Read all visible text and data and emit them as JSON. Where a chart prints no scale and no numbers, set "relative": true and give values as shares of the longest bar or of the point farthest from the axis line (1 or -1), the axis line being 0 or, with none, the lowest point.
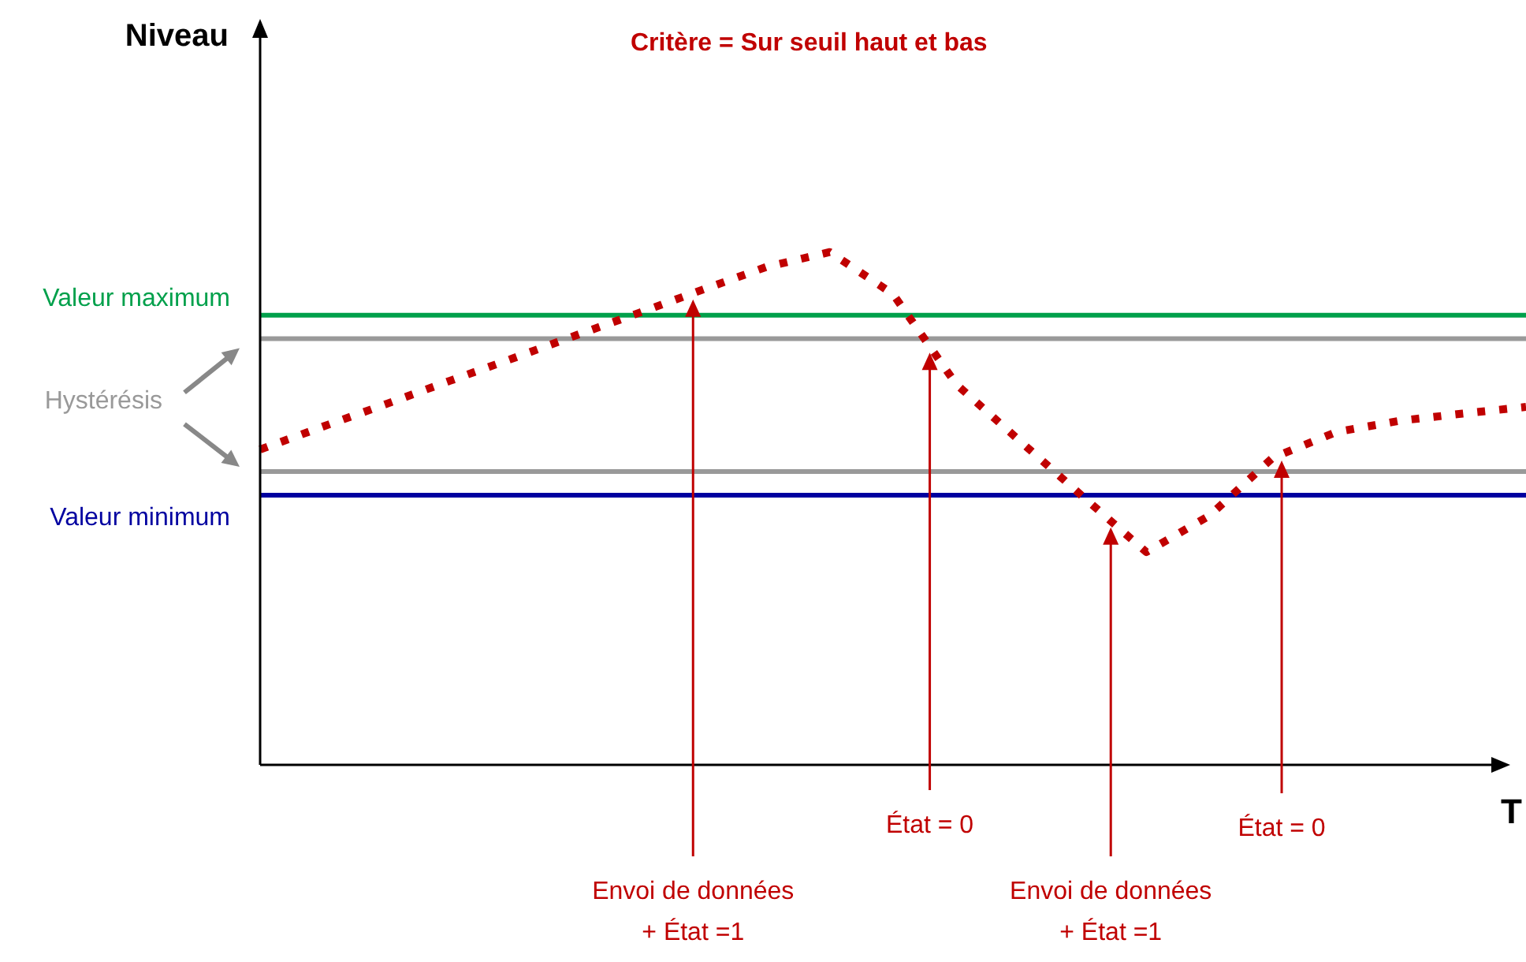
{
  "chart_data": {
    "type": "line",
    "title": "Critère = Sur seuil haut et bas",
    "xlabel": "T",
    "relative": true,
    "marker": "none",
    "line_style": "dotted",
    "legend": false,
    "categories": [
      null,
      null,
      null,
      null,
      null,
      null,
      null,
      null,
      null,
      null,
      null,
      null,
      null,
      null,
      null,
      null,
      null,
      null,
      null,
      null,
      null
    ],
    "series": [
      {
        "color": "#c00000",
        "values": [
          0.615,
          0.66,
          0.704,
          0.749,
          0.793,
          0.838,
          0.882,
          0.927,
          0.971,
          1,
          0.918,
          0.742,
          0.632,
          0.523,
          0.415,
          0.486,
          0.599,
          0.649,
          0.671,
          0.685,
          0.698
        ]
      }
    ],
    "ref_lines": [
      {
        "axis": "y",
        "value": 0.877,
        "label": "Valeur maximum",
        "color": "#00a04b"
      },
      {
        "axis": "y",
        "value": 0.831,
        "label": null,
        "color": "#999999"
      },
      {
        "axis": "y",
        "value": 0.572,
        "label": null,
        "color": "#999999"
      },
      {
        "axis": "y",
        "value": 0.526,
        "label": "Valeur minimum",
        "color": "#0000a0"
      }
    ],
    "annotations": [
      "Niveau",
      "Hystérésis",
      "Envoi de données\n+ État =1",
      "État = 0",
      "Envoi de données\n+ État =1",
      "État = 0"
    ]
  }
}
